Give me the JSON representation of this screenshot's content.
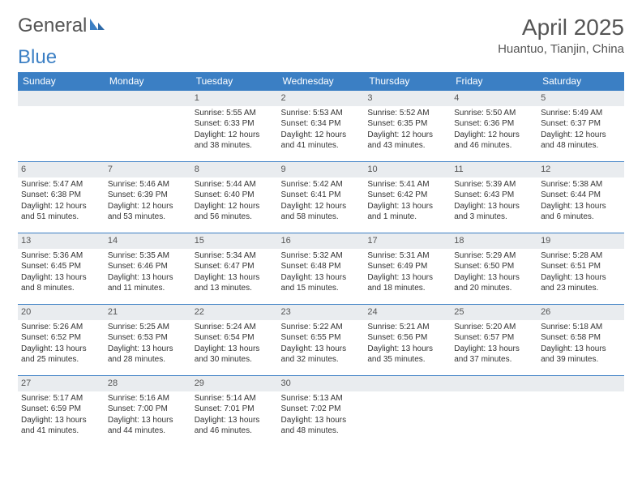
{
  "brand": {
    "part1": "General",
    "part2": "Blue"
  },
  "title": "April 2025",
  "location": "Huantuo, Tianjin, China",
  "colors": {
    "header_bg": "#3b7fc4",
    "header_text": "#ffffff",
    "daynum_bg": "#e9ecef",
    "text": "#333333",
    "title_color": "#555555",
    "row_border": "#3b7fc4"
  },
  "daysOfWeek": [
    "Sunday",
    "Monday",
    "Tuesday",
    "Wednesday",
    "Thursday",
    "Friday",
    "Saturday"
  ],
  "weeks": [
    [
      null,
      null,
      {
        "n": "1",
        "sr": "5:55 AM",
        "ss": "6:33 PM",
        "dl": "12 hours and 38 minutes."
      },
      {
        "n": "2",
        "sr": "5:53 AM",
        "ss": "6:34 PM",
        "dl": "12 hours and 41 minutes."
      },
      {
        "n": "3",
        "sr": "5:52 AM",
        "ss": "6:35 PM",
        "dl": "12 hours and 43 minutes."
      },
      {
        "n": "4",
        "sr": "5:50 AM",
        "ss": "6:36 PM",
        "dl": "12 hours and 46 minutes."
      },
      {
        "n": "5",
        "sr": "5:49 AM",
        "ss": "6:37 PM",
        "dl": "12 hours and 48 minutes."
      }
    ],
    [
      {
        "n": "6",
        "sr": "5:47 AM",
        "ss": "6:38 PM",
        "dl": "12 hours and 51 minutes."
      },
      {
        "n": "7",
        "sr": "5:46 AM",
        "ss": "6:39 PM",
        "dl": "12 hours and 53 minutes."
      },
      {
        "n": "8",
        "sr": "5:44 AM",
        "ss": "6:40 PM",
        "dl": "12 hours and 56 minutes."
      },
      {
        "n": "9",
        "sr": "5:42 AM",
        "ss": "6:41 PM",
        "dl": "12 hours and 58 minutes."
      },
      {
        "n": "10",
        "sr": "5:41 AM",
        "ss": "6:42 PM",
        "dl": "13 hours and 1 minute."
      },
      {
        "n": "11",
        "sr": "5:39 AM",
        "ss": "6:43 PM",
        "dl": "13 hours and 3 minutes."
      },
      {
        "n": "12",
        "sr": "5:38 AM",
        "ss": "6:44 PM",
        "dl": "13 hours and 6 minutes."
      }
    ],
    [
      {
        "n": "13",
        "sr": "5:36 AM",
        "ss": "6:45 PM",
        "dl": "13 hours and 8 minutes."
      },
      {
        "n": "14",
        "sr": "5:35 AM",
        "ss": "6:46 PM",
        "dl": "13 hours and 11 minutes."
      },
      {
        "n": "15",
        "sr": "5:34 AM",
        "ss": "6:47 PM",
        "dl": "13 hours and 13 minutes."
      },
      {
        "n": "16",
        "sr": "5:32 AM",
        "ss": "6:48 PM",
        "dl": "13 hours and 15 minutes."
      },
      {
        "n": "17",
        "sr": "5:31 AM",
        "ss": "6:49 PM",
        "dl": "13 hours and 18 minutes."
      },
      {
        "n": "18",
        "sr": "5:29 AM",
        "ss": "6:50 PM",
        "dl": "13 hours and 20 minutes."
      },
      {
        "n": "19",
        "sr": "5:28 AM",
        "ss": "6:51 PM",
        "dl": "13 hours and 23 minutes."
      }
    ],
    [
      {
        "n": "20",
        "sr": "5:26 AM",
        "ss": "6:52 PM",
        "dl": "13 hours and 25 minutes."
      },
      {
        "n": "21",
        "sr": "5:25 AM",
        "ss": "6:53 PM",
        "dl": "13 hours and 28 minutes."
      },
      {
        "n": "22",
        "sr": "5:24 AM",
        "ss": "6:54 PM",
        "dl": "13 hours and 30 minutes."
      },
      {
        "n": "23",
        "sr": "5:22 AM",
        "ss": "6:55 PM",
        "dl": "13 hours and 32 minutes."
      },
      {
        "n": "24",
        "sr": "5:21 AM",
        "ss": "6:56 PM",
        "dl": "13 hours and 35 minutes."
      },
      {
        "n": "25",
        "sr": "5:20 AM",
        "ss": "6:57 PM",
        "dl": "13 hours and 37 minutes."
      },
      {
        "n": "26",
        "sr": "5:18 AM",
        "ss": "6:58 PM",
        "dl": "13 hours and 39 minutes."
      }
    ],
    [
      {
        "n": "27",
        "sr": "5:17 AM",
        "ss": "6:59 PM",
        "dl": "13 hours and 41 minutes."
      },
      {
        "n": "28",
        "sr": "5:16 AM",
        "ss": "7:00 PM",
        "dl": "13 hours and 44 minutes."
      },
      {
        "n": "29",
        "sr": "5:14 AM",
        "ss": "7:01 PM",
        "dl": "13 hours and 46 minutes."
      },
      {
        "n": "30",
        "sr": "5:13 AM",
        "ss": "7:02 PM",
        "dl": "13 hours and 48 minutes."
      },
      null,
      null,
      null
    ]
  ],
  "labels": {
    "sunrise": "Sunrise: ",
    "sunset": "Sunset: ",
    "daylight": "Daylight: "
  }
}
